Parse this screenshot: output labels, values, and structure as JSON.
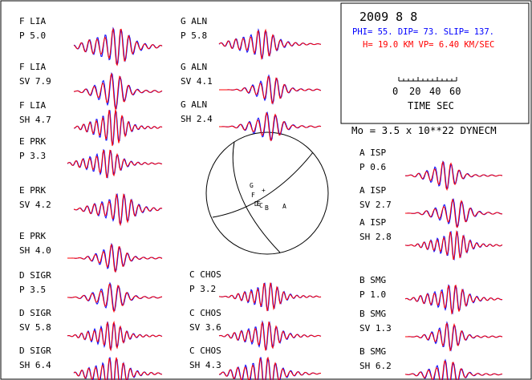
{
  "info": {
    "date": "2009  8  8",
    "mechanism": "PHI=  55. DIP= 73. SLIP= 137.",
    "depth_velocity": "H= 19.0 KM  VP= 6.40 KM/SEC",
    "scale_ticks": [
      "0",
      "20",
      "40",
      "60"
    ],
    "scale_label": "TIME  SEC",
    "moment": "Mo =  3.5 x 10**22 DYNECM"
  },
  "colors": {
    "observed": "#0000ff",
    "synthetic": "#ff0000",
    "frame": "#000000"
  },
  "traces": [
    {
      "id": "f-lia-p",
      "station": "F LIA",
      "component": "P  5.0",
      "seed": 1
    },
    {
      "id": "f-lia-sv",
      "station": "F LIA",
      "component": "SV 7.9",
      "seed": 2
    },
    {
      "id": "f-lia-sh",
      "station": "F LIA",
      "component": "SH 4.7",
      "seed": 3
    },
    {
      "id": "e-prk-p",
      "station": "E PRK",
      "component": "P  3.3",
      "seed": 4
    },
    {
      "id": "e-prk-sv",
      "station": "E PRK",
      "component": "SV 4.2",
      "seed": 5
    },
    {
      "id": "e-prk-sh",
      "station": "E PRK",
      "component": "SH 4.0",
      "seed": 6
    },
    {
      "id": "d-sigr-p",
      "station": "D SIGR",
      "component": "P  3.5",
      "seed": 7
    },
    {
      "id": "d-sigr-sv",
      "station": "D SIGR",
      "component": "SV 5.8",
      "seed": 8
    },
    {
      "id": "d-sigr-sh",
      "station": "D SIGR",
      "component": "SH 6.4",
      "seed": 9
    },
    {
      "id": "g-aln-p",
      "station": "G ALN",
      "component": "P  5.8",
      "seed": 10
    },
    {
      "id": "g-aln-sv",
      "station": "G ALN",
      "component": "SV 4.1",
      "seed": 11
    },
    {
      "id": "g-aln-sh",
      "station": "G ALN",
      "component": "SH 2.4",
      "seed": 12
    },
    {
      "id": "c-chos-p",
      "station": "C CHOS",
      "component": "P  3.2",
      "seed": 13
    },
    {
      "id": "c-chos-sv",
      "station": "C CHOS",
      "component": "SV 3.6",
      "seed": 14
    },
    {
      "id": "c-chos-sh",
      "station": "C CHOS",
      "component": "SH 4.3",
      "seed": 15
    },
    {
      "id": "a-isp-p",
      "station": "A ISP",
      "component": "P  0.6",
      "seed": 16
    },
    {
      "id": "a-isp-sv",
      "station": "A ISP",
      "component": "SV 2.7",
      "seed": 17
    },
    {
      "id": "a-isp-sh",
      "station": "A ISP",
      "component": "SH 2.8",
      "seed": 18
    },
    {
      "id": "b-smg-p",
      "station": "B SMG",
      "component": "P  1.0",
      "seed": 19
    },
    {
      "id": "b-smg-sv",
      "station": "B SMG",
      "component": "SV 1.3",
      "seed": 20
    },
    {
      "id": "b-smg-sh",
      "station": "B SMG",
      "component": "SH 6.2",
      "seed": 21
    }
  ],
  "beachball": {
    "stations": [
      {
        "label": "G"
      },
      {
        "label": "F"
      },
      {
        "label": "+"
      },
      {
        "label": "D"
      },
      {
        "label": "E"
      },
      {
        "label": "C"
      },
      {
        "label": "B"
      },
      {
        "label": "A"
      }
    ]
  }
}
